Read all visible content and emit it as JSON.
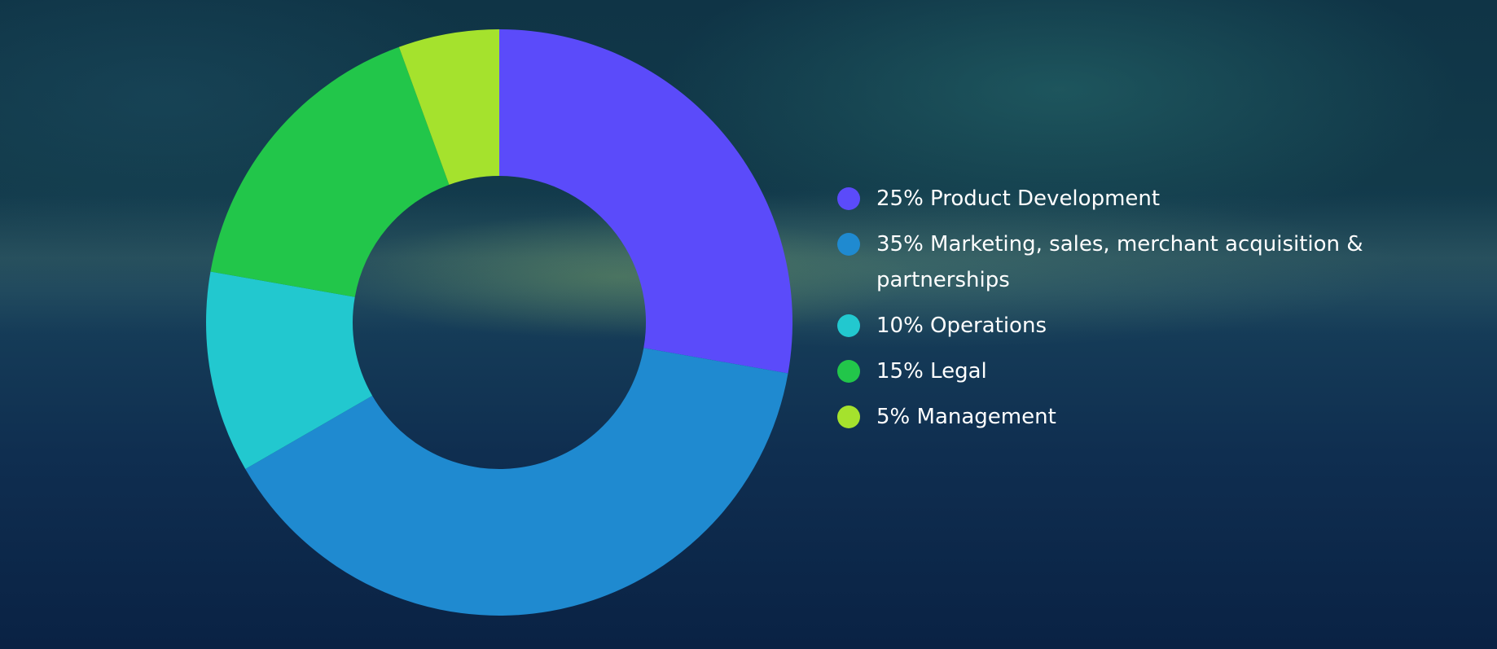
{
  "chart_data": {
    "type": "pie",
    "donut": true,
    "legend_position": "right",
    "slices": [
      {
        "label": "25% Product Development",
        "value": 25,
        "color": "#5b4bfa"
      },
      {
        "label": "35% Marketing, sales, merchant acquisition & partnerships",
        "value": 35,
        "color": "#1f8ad0"
      },
      {
        "label": "10% Operations",
        "value": 10,
        "color": "#22c8cf"
      },
      {
        "label": "15% Legal",
        "value": 15,
        "color": "#22c64a"
      },
      {
        "label": "5% Management",
        "value": 5,
        "color": "#a5e22d"
      }
    ]
  }
}
